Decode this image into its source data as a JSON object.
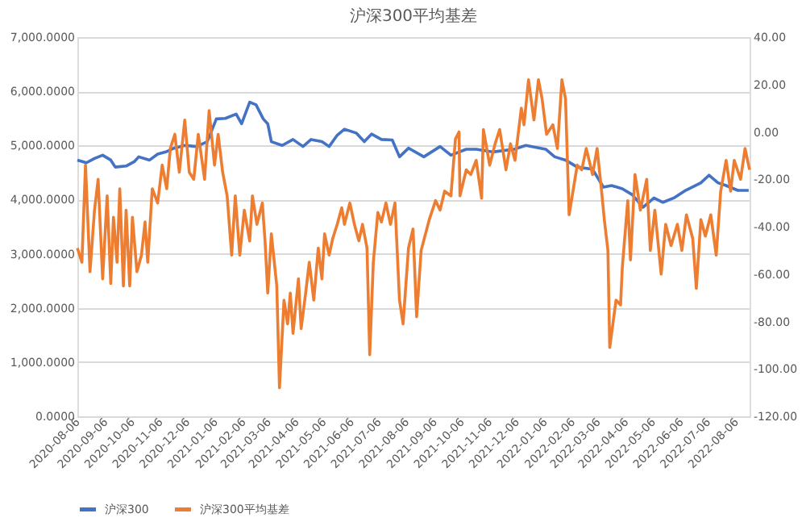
{
  "chart_data": {
    "type": "line",
    "title": "沪深300平均基差",
    "xlim": [
      "2020-08-06",
      "2022-08-21"
    ],
    "xticks": [
      "2020-08-06",
      "2020-09-06",
      "2020-10-06",
      "2020-11-06",
      "2020-12-06",
      "2021-01-06",
      "2021-02-06",
      "2021-03-06",
      "2021-04-06",
      "2021-05-06",
      "2021-06-06",
      "2021-07-06",
      "2021-08-06",
      "2021-09-06",
      "2021-10-06",
      "2021-11-06",
      "2021-12-06",
      "2022-01-06",
      "2022-02-06",
      "2022-03-06",
      "2022-04-06",
      "2022-05-06",
      "2022-06-06",
      "2022-07-06",
      "2022-08-06"
    ],
    "ylim": [
      0,
      7000
    ],
    "yticks": [
      {
        "value": 0,
        "label": "0.0000"
      },
      {
        "value": 1000,
        "label": "1,000.0000"
      },
      {
        "value": 2000,
        "label": "2,000.0000"
      },
      {
        "value": 3000,
        "label": "3,000.0000"
      },
      {
        "value": 4000,
        "label": "4,000.0000"
      },
      {
        "value": 5000,
        "label": "5,000.0000"
      },
      {
        "value": 6000,
        "label": "6,000.0000"
      },
      {
        "value": 7000,
        "label": "7,000.0000"
      }
    ],
    "y2lim": [
      -120,
      40
    ],
    "y2ticks": [
      {
        "value": -120,
        "label": "-120.00"
      },
      {
        "value": -100,
        "label": "-100.00"
      },
      {
        "value": -80,
        "label": "-80.00"
      },
      {
        "value": -60,
        "label": "-60.00"
      },
      {
        "value": -40,
        "label": "-40.00"
      },
      {
        "value": -20,
        "label": "-20.00"
      },
      {
        "value": 0,
        "label": "0.00"
      },
      {
        "value": 20,
        "label": "20.00"
      },
      {
        "value": 40,
        "label": "40.00"
      }
    ],
    "grid": "y",
    "legend": "bottom",
    "marker": "none",
    "line_style": "solid",
    "series": [
      {
        "name": "沪深300",
        "color": "#4472c4",
        "x": [
          "2020-08-06",
          "2020-08-16",
          "2020-08-25",
          "2020-09-03",
          "2020-09-12",
          "2020-09-17",
          "2020-09-29",
          "2020-10-08",
          "2020-10-13",
          "2020-10-25",
          "2020-11-03",
          "2020-11-12",
          "2020-11-21",
          "2020-12-03",
          "2020-12-16",
          "2020-12-28",
          "2021-01-07",
          "2021-01-17",
          "2021-01-29",
          "2021-02-04",
          "2021-02-13",
          "2021-02-20",
          "2021-02-28",
          "2021-03-05",
          "2021-03-09",
          "2021-03-21",
          "2021-04-02",
          "2021-04-13",
          "2021-04-22",
          "2021-05-04",
          "2021-05-12",
          "2021-05-21",
          "2021-05-29",
          "2021-06-11",
          "2021-06-20",
          "2021-06-28",
          "2021-07-09",
          "2021-07-21",
          "2021-07-29",
          "2021-08-08",
          "2021-08-25",
          "2021-09-12",
          "2021-09-24",
          "2021-10-11",
          "2021-10-22",
          "2021-11-09",
          "2021-12-03",
          "2021-12-16",
          "2022-01-07",
          "2022-01-17",
          "2022-01-29",
          "2022-02-11",
          "2022-02-28",
          "2022-03-12",
          "2022-03-21",
          "2022-04-02",
          "2022-04-13",
          "2022-04-25",
          "2022-05-07",
          "2022-05-17",
          "2022-05-29",
          "2022-06-11",
          "2022-06-28",
          "2022-07-07",
          "2022-07-17",
          "2022-07-26",
          "2022-08-08",
          "2022-08-20"
        ],
        "values": [
          4730,
          4680,
          4760,
          4820,
          4730,
          4600,
          4620,
          4700,
          4790,
          4730,
          4840,
          4880,
          4950,
          5000,
          4980,
          5070,
          5490,
          5500,
          5580,
          5400,
          5800,
          5750,
          5490,
          5400,
          5070,
          5000,
          5110,
          4980,
          5110,
          5070,
          4980,
          5190,
          5300,
          5230,
          5070,
          5210,
          5110,
          5100,
          4790,
          4950,
          4790,
          4980,
          4820,
          4930,
          4930,
          4880,
          4930,
          5000,
          4930,
          4790,
          4730,
          4600,
          4560,
          4230,
          4260,
          4200,
          4090,
          3860,
          4030,
          3950,
          4030,
          4170,
          4310,
          4450,
          4310,
          4260,
          4170,
          4170
        ]
      },
      {
        "name": "沪深300平均基差",
        "color": "#ed7d31",
        "axis": "y2",
        "x": [
          "2020-08-06",
          "2020-08-11",
          "2020-08-15",
          "2020-08-20",
          "2020-08-25",
          "2020-08-29",
          "2020-09-03",
          "2020-09-08",
          "2020-09-12",
          "2020-09-15",
          "2020-09-19",
          "2020-09-22",
          "2020-09-26",
          "2020-09-29",
          "2020-10-03",
          "2020-10-06",
          "2020-10-11",
          "2020-10-16",
          "2020-10-20",
          "2020-10-23",
          "2020-10-28",
          "2020-11-03",
          "2020-11-08",
          "2020-11-13",
          "2020-11-17",
          "2020-11-22",
          "2020-11-27",
          "2020-12-03",
          "2020-12-08",
          "2020-12-13",
          "2020-12-18",
          "2020-12-25",
          "2020-12-30",
          "2021-01-05",
          "2021-01-09",
          "2021-01-14",
          "2021-01-19",
          "2021-01-24",
          "2021-01-28",
          "2021-02-02",
          "2021-02-07",
          "2021-02-13",
          "2021-02-16",
          "2021-02-21",
          "2021-02-27",
          "2021-03-02",
          "2021-03-05",
          "2021-03-09",
          "2021-03-15",
          "2021-03-18",
          "2021-03-23",
          "2021-03-27",
          "2021-03-30",
          "2021-04-02",
          "2021-04-08",
          "2021-04-11",
          "2021-04-16",
          "2021-04-20",
          "2021-04-25",
          "2021-04-30",
          "2021-05-04",
          "2021-05-07",
          "2021-05-12",
          "2021-05-16",
          "2021-05-21",
          "2021-05-26",
          "2021-05-29",
          "2021-06-04",
          "2021-06-09",
          "2021-06-14",
          "2021-06-18",
          "2021-06-23",
          "2021-06-26",
          "2021-06-30",
          "2021-07-05",
          "2021-07-09",
          "2021-07-14",
          "2021-07-19",
          "2021-07-24",
          "2021-07-29",
          "2021-08-02",
          "2021-08-08",
          "2021-08-13",
          "2021-08-17",
          "2021-08-22",
          "2021-08-31",
          "2021-09-07",
          "2021-09-12",
          "2021-09-17",
          "2021-09-24",
          "2021-09-29",
          "2021-10-03",
          "2021-10-04",
          "2021-10-11",
          "2021-10-16",
          "2021-10-22",
          "2021-10-28",
          "2021-10-30",
          "2021-11-06",
          "2021-11-12",
          "2021-11-17",
          "2021-11-24",
          "2021-11-29",
          "2021-12-04",
          "2021-12-11",
          "2021-12-14",
          "2021-12-19",
          "2021-12-25",
          "2021-12-30",
          "2022-01-03",
          "2022-01-08",
          "2022-01-15",
          "2022-01-20",
          "2022-01-25",
          "2022-01-29",
          "2022-02-02",
          "2022-02-11",
          "2022-02-16",
          "2022-02-21",
          "2022-02-28",
          "2022-03-05",
          "2022-03-10",
          "2022-03-13",
          "2022-03-17",
          "2022-03-19",
          "2022-03-26",
          "2022-03-31",
          "2022-04-02",
          "2022-04-08",
          "2022-04-11",
          "2022-04-16",
          "2022-04-22",
          "2022-04-29",
          "2022-05-03",
          "2022-05-08",
          "2022-05-15",
          "2022-05-20",
          "2022-05-26",
          "2022-06-02",
          "2022-06-07",
          "2022-06-12",
          "2022-06-19",
          "2022-06-23",
          "2022-06-28",
          "2022-07-03",
          "2022-07-09",
          "2022-07-15",
          "2022-07-20",
          "2022-07-26",
          "2022-07-31",
          "2022-08-04",
          "2022-08-11",
          "2022-08-16",
          "2022-08-21"
        ],
        "values": [
          -49,
          -55,
          -14,
          -59,
          -33,
          -20,
          -62,
          -27,
          -64,
          -36,
          -55,
          -24,
          -65,
          -33,
          -65,
          -36,
          -59,
          -52,
          -38,
          -55,
          -24,
          -30,
          -14,
          -24,
          -7,
          -1,
          -17,
          5,
          -17,
          -20,
          -1,
          -20,
          9,
          -14,
          -1,
          -17,
          -27,
          -52,
          -27,
          -52,
          -33,
          -46,
          -27,
          -39,
          -30,
          -46,
          -68,
          -43,
          -65,
          -108,
          -71,
          -81,
          -68,
          -85,
          -62,
          -83,
          -68,
          -55,
          -71,
          -49,
          -62,
          -43,
          -52,
          -45,
          -39,
          -32,
          -39,
          -30,
          -39,
          -46,
          -39,
          -49,
          -94,
          -55,
          -34,
          -38,
          -30,
          -39,
          -30,
          -71,
          -81,
          -49,
          -41,
          -78,
          -50,
          -37,
          -29,
          -33,
          -25,
          -27,
          -3,
          0,
          -27,
          -16,
          -18,
          -12,
          -28,
          1,
          -14,
          -5,
          1,
          -16,
          -5,
          -12,
          10,
          3,
          22,
          5,
          22,
          14,
          -1,
          3,
          -7,
          22,
          14,
          -35,
          -14,
          -16,
          -7,
          -18,
          -7,
          -25,
          -37,
          -50,
          -91,
          -71,
          -73,
          -57,
          -29,
          -54,
          -18,
          -33,
          -20,
          -50,
          -33,
          -60,
          -39,
          -48,
          -39,
          -50,
          -35,
          -45,
          -66,
          -37,
          -44,
          -35,
          -52,
          -25,
          -12,
          -25,
          -12,
          -20,
          -7,
          -16
        ]
      }
    ]
  }
}
